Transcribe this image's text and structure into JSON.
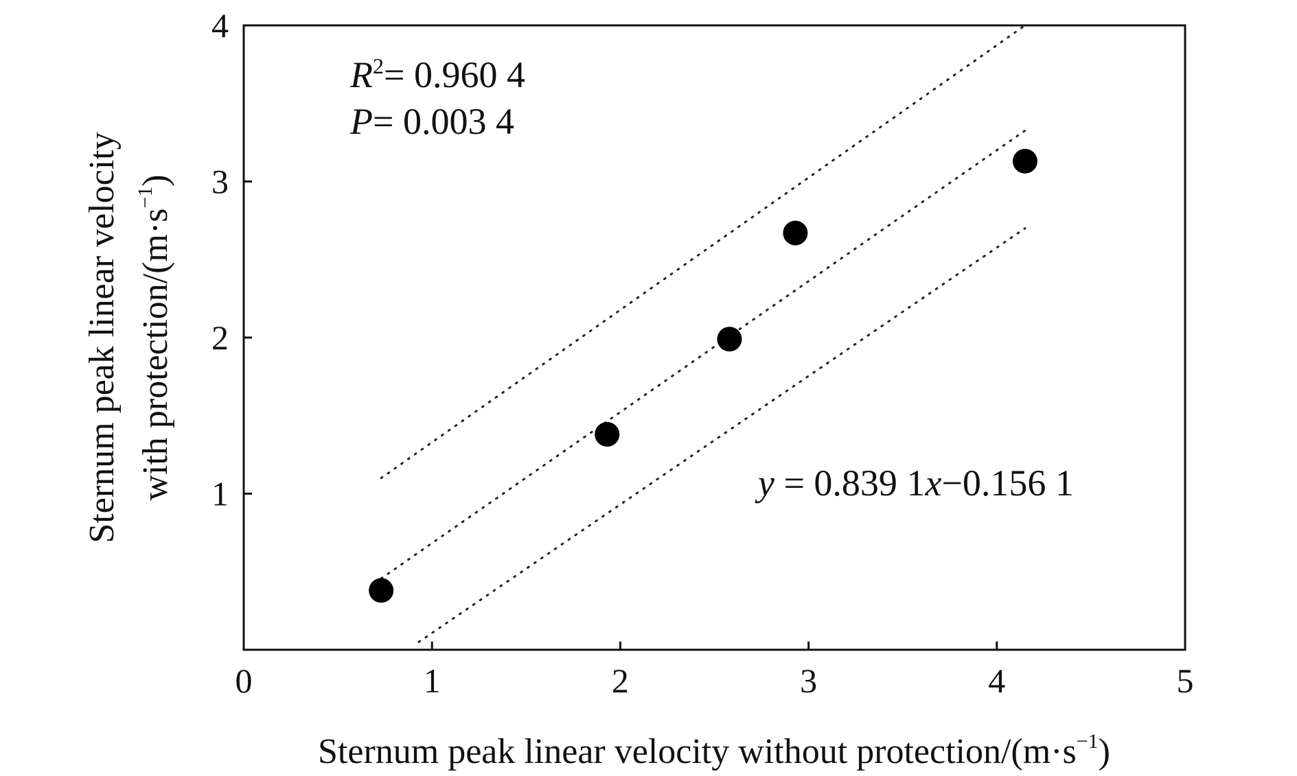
{
  "chart_data": {
    "type": "scatter",
    "xlabel_main": "Sternum peak linear velocity without protection/(m·s",
    "xlabel_sup": "−1",
    "xlabel_end": ")",
    "ylabel_line1": "Sternum peak linear velocity",
    "ylabel_line2_main": "with protection/(m·s",
    "ylabel_line2_sup": "−1",
    "ylabel_line2_end": ")",
    "xlim": [
      0,
      5
    ],
    "ylim": [
      0,
      4
    ],
    "x_ticks": [
      0,
      1,
      2,
      3,
      4,
      5
    ],
    "y_ticks": [
      1,
      2,
      3,
      4
    ],
    "points": [
      {
        "x": 0.73,
        "y": 0.38
      },
      {
        "x": 1.93,
        "y": 1.38
      },
      {
        "x": 2.58,
        "y": 1.99
      },
      {
        "x": 2.93,
        "y": 2.67
      },
      {
        "x": 4.15,
        "y": 3.13
      }
    ],
    "fit_line": {
      "slope": 0.8391,
      "intercept": -0.1561,
      "x_range": [
        0.73,
        4.15
      ]
    },
    "upper_band": {
      "x1": 0.73,
      "y1": 1.1,
      "x2": 4.15,
      "y2": 4.0
    },
    "lower_band": {
      "x1": 0.93,
      "y1": 0.05,
      "x2": 4.15,
      "y2": 2.7
    },
    "annotations": {
      "r2_var": "R",
      "r2_sup": "2",
      "r2_value": "= 0.960 4",
      "p_var": "P",
      "p_value": "= 0.003 4",
      "eq_y": "y",
      "eq_mid": " = 0.839 1",
      "eq_x": "x",
      "eq_end": "−0.156 1"
    }
  }
}
